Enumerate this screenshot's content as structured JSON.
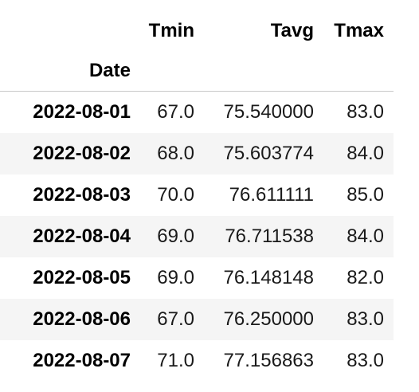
{
  "table": {
    "columns": [
      "Tmin",
      "Tavg",
      "Tmax"
    ],
    "index_name": "Date",
    "rows": [
      {
        "date": "2022-08-01",
        "tmin": "67.0",
        "tavg": "75.540000",
        "tmax": "83.0"
      },
      {
        "date": "2022-08-02",
        "tmin": "68.0",
        "tavg": "75.603774",
        "tmax": "84.0"
      },
      {
        "date": "2022-08-03",
        "tmin": "70.0",
        "tavg": "76.611111",
        "tmax": "85.0"
      },
      {
        "date": "2022-08-04",
        "tmin": "69.0",
        "tavg": "76.711538",
        "tmax": "84.0"
      },
      {
        "date": "2022-08-05",
        "tmin": "69.0",
        "tavg": "76.148148",
        "tmax": "82.0"
      },
      {
        "date": "2022-08-06",
        "tmin": "67.0",
        "tavg": "76.250000",
        "tmax": "83.0"
      },
      {
        "date": "2022-08-07",
        "tmin": "71.0",
        "tavg": "77.156863",
        "tmax": "83.0"
      }
    ]
  },
  "colors": {
    "background": "#ffffff",
    "stripe": "#f5f5f5",
    "header_rule": "#c8c8c8"
  }
}
